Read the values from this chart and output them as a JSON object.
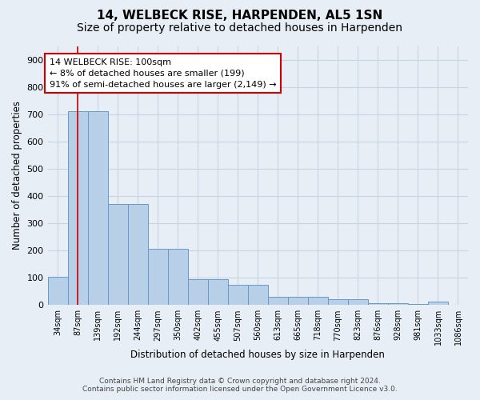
{
  "title": "14, WELBECK RISE, HARPENDEN, AL5 1SN",
  "subtitle": "Size of property relative to detached houses in Harpenden",
  "xlabel": "Distribution of detached houses by size in Harpenden",
  "ylabel": "Number of detached properties",
  "categories": [
    "34sqm",
    "87sqm",
    "139sqm",
    "192sqm",
    "244sqm",
    "297sqm",
    "350sqm",
    "402sqm",
    "455sqm",
    "507sqm",
    "560sqm",
    "613sqm",
    "665sqm",
    "718sqm",
    "770sqm",
    "823sqm",
    "876sqm",
    "928sqm",
    "981sqm",
    "1033sqm",
    "1086sqm"
  ],
  "bar_values": [
    103,
    710,
    710,
    372,
    372,
    207,
    207,
    95,
    95,
    75,
    75,
    30,
    30,
    30,
    22,
    22,
    8,
    8,
    5,
    12,
    0
  ],
  "bar_color": "#b8cfe8",
  "bar_edge_color": "#6699cc",
  "red_line_x": 1,
  "annotation_text": "14 WELBECK RISE: 100sqm\n← 8% of detached houses are smaller (199)\n91% of semi-detached houses are larger (2,149) →",
  "annotation_box_facecolor": "#ffffff",
  "annotation_border_color": "#cc0000",
  "ylim": [
    0,
    950
  ],
  "yticks": [
    0,
    100,
    200,
    300,
    400,
    500,
    600,
    700,
    800,
    900
  ],
  "grid_color": "#c8d4e0",
  "bg_color": "#e8eef6",
  "footer_line1": "Contains HM Land Registry data © Crown copyright and database right 2024.",
  "footer_line2": "Contains public sector information licensed under the Open Government Licence v3.0.",
  "title_fontsize": 11,
  "subtitle_fontsize": 10
}
